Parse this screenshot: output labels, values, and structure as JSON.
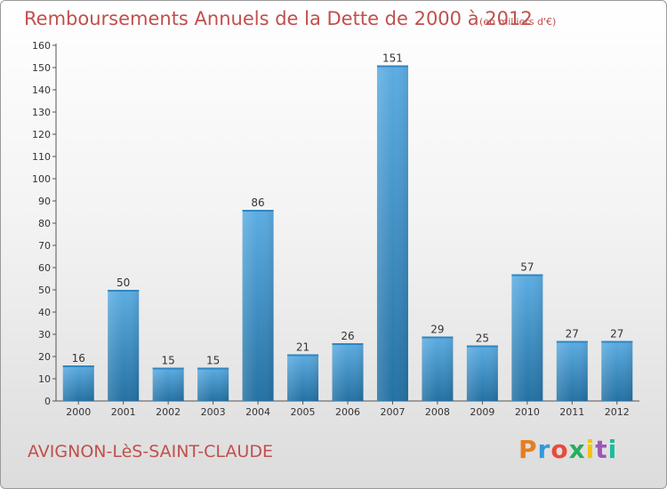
{
  "chart_data": {
    "type": "bar",
    "title": "Remboursements Annuels de la Dette de 2000 à 2012",
    "subtitle": "(en milliers d'€)",
    "categories": [
      "2000",
      "2001",
      "2002",
      "2003",
      "2004",
      "2005",
      "2006",
      "2007",
      "2008",
      "2009",
      "2010",
      "2011",
      "2012"
    ],
    "values": [
      16,
      50,
      15,
      15,
      86,
      21,
      26,
      151,
      29,
      25,
      57,
      27,
      27
    ],
    "ylim": [
      0,
      160
    ],
    "yticks": [
      0,
      10,
      20,
      30,
      40,
      50,
      60,
      70,
      80,
      90,
      100,
      110,
      120,
      130,
      140,
      150,
      160
    ],
    "grid": false,
    "bar_color_top": "#5dade2",
    "bar_color_bottom": "#2471a3"
  },
  "footer": {
    "commune": "AVIGNON-LèS-SAINT-CLAUDE",
    "logo_text": "Proxiti",
    "logo_colors": [
      "#e67e22",
      "#3498db",
      "#e74c3c",
      "#27ae60",
      "#f1c40f",
      "#9b59b6",
      "#1abc9c"
    ]
  }
}
